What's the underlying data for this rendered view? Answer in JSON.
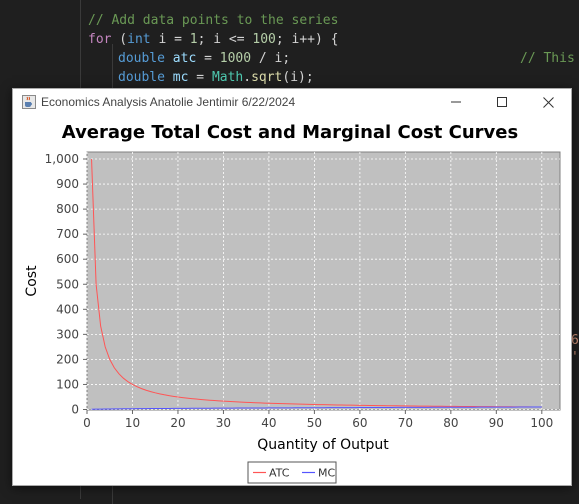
{
  "editor": {
    "line1": "// Add data points to the series",
    "line2_kw": "for",
    "line2_a": " (",
    "line2_type": "int",
    "line2_b": " i = ",
    "line2_n1": "1",
    "line2_c": "; i <= ",
    "line2_n2": "100",
    "line2_d": "; i++) {",
    "line3_type": "double",
    "line3_var": "atc",
    "line3_a": " = ",
    "line3_num": "1000",
    "line3_b": " / i;",
    "line3_comment": "// This",
    "line4_type": "double",
    "line4_var": "mc",
    "line4_a": " = ",
    "line4_cls": "Math",
    "line4_dot": ".",
    "line4_fn": "sqrt",
    "line4_b": "(i);",
    "peek1": "6",
    "peek2": "'"
  },
  "window": {
    "title": "Economics Analysis Anatolie Jentimir 6/22/2024",
    "icons": {
      "app": "java-cup-icon",
      "minimize": "minimize-icon",
      "maximize": "maximize-icon",
      "close": "close-icon"
    }
  },
  "colors": {
    "plot_background": "#c0c0c0",
    "gridline": "#ffffff",
    "atc_series": "#ff5555",
    "mc_series": "#5555ff"
  },
  "chart_data": {
    "type": "line",
    "title": "Average Total Cost and Marginal Cost Curves",
    "xlabel": "Quantity of Output",
    "ylabel": "Cost",
    "xlim": [
      0,
      104
    ],
    "ylim": [
      -2,
      1028
    ],
    "x_ticks": [
      0,
      10,
      20,
      30,
      40,
      50,
      60,
      70,
      80,
      90,
      100
    ],
    "x_tick_labels": [
      "0",
      "10",
      "20",
      "30",
      "40",
      "50",
      "60",
      "70",
      "80",
      "90",
      "100"
    ],
    "y_ticks": [
      0,
      100,
      200,
      300,
      400,
      500,
      600,
      700,
      800,
      900,
      1000
    ],
    "y_tick_labels": [
      "0",
      "100",
      "200",
      "300",
      "400",
      "500",
      "600",
      "700",
      "800",
      "900",
      "1,000"
    ],
    "grid": true,
    "legend": "bottom",
    "series": [
      {
        "name": "ATC",
        "color": "#ff5555",
        "x": [
          1,
          2,
          3,
          4,
          5,
          6,
          7,
          8,
          9,
          10,
          11,
          12,
          13,
          14,
          15,
          16,
          17,
          18,
          19,
          20,
          21,
          22,
          23,
          24,
          25,
          26,
          27,
          28,
          29,
          30,
          31,
          32,
          33,
          34,
          35,
          36,
          37,
          38,
          39,
          40,
          41,
          42,
          43,
          44,
          45,
          46,
          47,
          48,
          49,
          50,
          51,
          52,
          53,
          54,
          55,
          56,
          57,
          58,
          59,
          60,
          61,
          62,
          63,
          64,
          65,
          66,
          67,
          68,
          69,
          70,
          71,
          72,
          73,
          74,
          75,
          76,
          77,
          78,
          79,
          80,
          81,
          82,
          83,
          84,
          85,
          86,
          87,
          88,
          89,
          90,
          91,
          92,
          93,
          94,
          95,
          96,
          97,
          98,
          99,
          100
        ],
        "y": [
          1000,
          500,
          333.33,
          250,
          200,
          166.67,
          142.86,
          125,
          111.11,
          100,
          90.91,
          83.33,
          76.92,
          71.43,
          66.67,
          62.5,
          58.82,
          55.56,
          52.63,
          50,
          47.62,
          45.45,
          43.48,
          41.67,
          40,
          38.46,
          37.04,
          35.71,
          34.48,
          33.33,
          32.26,
          31.25,
          30.3,
          29.41,
          28.57,
          27.78,
          27.03,
          26.32,
          25.64,
          25,
          24.39,
          23.81,
          23.26,
          22.73,
          22.22,
          21.74,
          21.28,
          20.83,
          20.41,
          20,
          19.61,
          19.23,
          18.87,
          18.52,
          18.18,
          17.86,
          17.54,
          17.24,
          16.95,
          16.67,
          16.39,
          16.13,
          15.87,
          15.63,
          15.38,
          15.15,
          14.93,
          14.71,
          14.49,
          14.29,
          14.08,
          13.89,
          13.7,
          13.51,
          13.33,
          13.16,
          12.99,
          12.82,
          12.66,
          12.5,
          12.35,
          12.2,
          12.05,
          11.9,
          11.76,
          11.63,
          11.49,
          11.36,
          11.24,
          11.11,
          10.99,
          10.87,
          10.75,
          10.64,
          10.53,
          10.42,
          10.31,
          10.2,
          10.1,
          10
        ]
      },
      {
        "name": "MC",
        "color": "#5555ff",
        "x": [
          1,
          2,
          3,
          4,
          5,
          6,
          7,
          8,
          9,
          10,
          11,
          12,
          13,
          14,
          15,
          16,
          17,
          18,
          19,
          20,
          21,
          22,
          23,
          24,
          25,
          26,
          27,
          28,
          29,
          30,
          31,
          32,
          33,
          34,
          35,
          36,
          37,
          38,
          39,
          40,
          41,
          42,
          43,
          44,
          45,
          46,
          47,
          48,
          49,
          50,
          51,
          52,
          53,
          54,
          55,
          56,
          57,
          58,
          59,
          60,
          61,
          62,
          63,
          64,
          65,
          66,
          67,
          68,
          69,
          70,
          71,
          72,
          73,
          74,
          75,
          76,
          77,
          78,
          79,
          80,
          81,
          82,
          83,
          84,
          85,
          86,
          87,
          88,
          89,
          90,
          91,
          92,
          93,
          94,
          95,
          96,
          97,
          98,
          99,
          100
        ],
        "y": [
          1,
          1.41,
          1.73,
          2,
          2.24,
          2.45,
          2.65,
          2.83,
          3,
          3.16,
          3.32,
          3.46,
          3.61,
          3.74,
          3.87,
          4,
          4.12,
          4.24,
          4.36,
          4.47,
          4.58,
          4.69,
          4.8,
          4.9,
          5,
          5.1,
          5.2,
          5.29,
          5.39,
          5.48,
          5.57,
          5.66,
          5.74,
          5.83,
          5.92,
          6,
          6.08,
          6.16,
          6.24,
          6.32,
          6.4,
          6.48,
          6.56,
          6.63,
          6.71,
          6.78,
          6.86,
          6.93,
          7,
          7.07,
          7.14,
          7.21,
          7.28,
          7.35,
          7.42,
          7.48,
          7.55,
          7.62,
          7.68,
          7.75,
          7.81,
          7.87,
          7.94,
          8,
          8.06,
          8.12,
          8.19,
          8.25,
          8.31,
          8.37,
          8.43,
          8.49,
          8.54,
          8.6,
          8.66,
          8.72,
          8.77,
          8.83,
          8.89,
          8.94,
          9,
          9.06,
          9.11,
          9.17,
          9.22,
          9.27,
          9.33,
          9.38,
          9.43,
          9.49,
          9.54,
          9.59,
          9.64,
          9.7,
          9.75,
          9.8,
          9.85,
          9.9,
          9.95,
          10
        ]
      }
    ]
  }
}
